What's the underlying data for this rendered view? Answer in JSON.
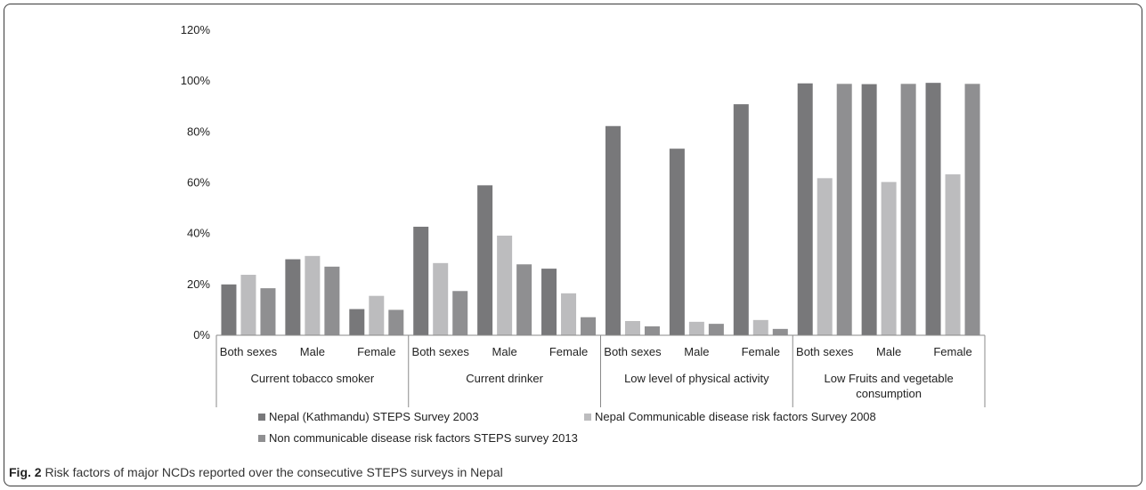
{
  "caption": {
    "label": "Fig. 2",
    "text": "Risk factors of major NCDs reported over the consecutive STEPS surveys in Nepal"
  },
  "chart_data": {
    "type": "bar",
    "groups": [
      {
        "label": "Current tobacco smoker",
        "categories": [
          "Both sexes",
          "Male",
          "Female"
        ]
      },
      {
        "label": "Current drinker",
        "categories": [
          "Both sexes",
          "Male",
          "Female"
        ]
      },
      {
        "label": "Low level of physical activity",
        "categories": [
          "Both sexes",
          "Male",
          "Female"
        ]
      },
      {
        "label": "Low Fruits and vegetable consumption",
        "categories": [
          "Both sexes",
          "Male",
          "Female"
        ]
      }
    ],
    "series": [
      {
        "name": "Nepal (Kathmandu) STEPS Survey 2003",
        "color": "#78787a",
        "values": [
          20,
          29.9,
          10.3,
          42.7,
          59,
          26.2,
          82.3,
          73.4,
          90.9,
          99.1,
          98.8,
          99.3
        ]
      },
      {
        "name": "Nepal Communicable disease risk factors Survey 2008",
        "color": "#bcbcbe",
        "values": [
          23.8,
          31.2,
          15.5,
          28.4,
          39.2,
          16.5,
          5.6,
          5.3,
          6,
          61.8,
          60.3,
          63.3
        ]
      },
      {
        "name": "Non communicable disease risk factors STEPS survey 2013",
        "color": "#8f8f91",
        "values": [
          18.5,
          27,
          10,
          17.4,
          27.9,
          7.1,
          3.5,
          4.5,
          2.5,
          98.9,
          98.9,
          98.9
        ]
      }
    ],
    "y_ticks": [
      "0%",
      "20%",
      "40%",
      "60%",
      "80%",
      "100%",
      "120%"
    ],
    "ylim": [
      0,
      120
    ],
    "legend_position": "bottom"
  }
}
